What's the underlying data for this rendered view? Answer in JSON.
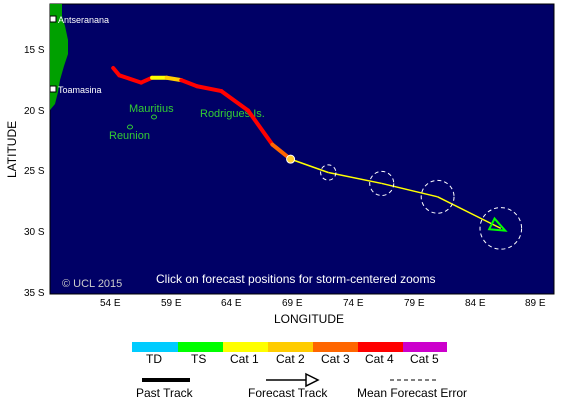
{
  "map": {
    "ocean_color": "#000066",
    "land_color": "#00a000",
    "label_color": "#33cc33",
    "cities": [
      {
        "name": "Antseranana"
      },
      {
        "name": "Toamasina"
      }
    ],
    "islands": [
      {
        "name": "Mauritius"
      },
      {
        "name": "Reunion"
      },
      {
        "name": "Rodrigues Is."
      }
    ],
    "copyright": "© UCL 2015",
    "instruction": "Click on forecast positions for storm-centered zooms"
  },
  "axes": {
    "xlabel": "LONGITUDE",
    "ylabel": "LATITUDE",
    "x_ticks": [
      "54 E",
      "59 E",
      "64 E",
      "69 E",
      "74 E",
      "79 E",
      "84 E",
      "89 E"
    ],
    "y_ticks": [
      "15 S",
      "20 S",
      "25 S",
      "30 S",
      "35 S"
    ]
  },
  "track": {
    "past": [
      {
        "lon": 54.1,
        "lat": 16.4,
        "cat": "TS"
      },
      {
        "lon": 54.6,
        "lat": 17.0,
        "cat": "Cat 4"
      },
      {
        "lon": 56.4,
        "lat": 17.6,
        "cat": "Cat 4"
      },
      {
        "lon": 57.3,
        "lat": 17.2,
        "cat": "Cat 4"
      },
      {
        "lon": 58.5,
        "lat": 17.2,
        "cat": "Cat 1"
      },
      {
        "lon": 59.7,
        "lat": 17.4,
        "cat": "Cat 2"
      },
      {
        "lon": 61.0,
        "lat": 17.9,
        "cat": "Cat 4"
      },
      {
        "lon": 63.0,
        "lat": 18.3,
        "cat": "Cat 4"
      },
      {
        "lon": 65.2,
        "lat": 19.9,
        "cat": "Cat 4"
      },
      {
        "lon": 67.2,
        "lat": 22.7,
        "cat": "Cat 4"
      },
      {
        "lon": 68.7,
        "lat": 23.9,
        "cat": "Cat 3"
      }
    ],
    "current": {
      "lon": 68.7,
      "lat": 23.9,
      "color": "#ffcc33"
    },
    "forecast": [
      {
        "lon": 68.7,
        "lat": 23.9,
        "error_km": 0
      },
      {
        "lon": 71.8,
        "lat": 25.0,
        "error_km": 70
      },
      {
        "lon": 76.2,
        "lat": 25.9,
        "error_km": 110
      },
      {
        "lon": 80.8,
        "lat": 27.0,
        "error_km": 150
      },
      {
        "lon": 86.0,
        "lat": 29.6,
        "error_km": 190
      }
    ],
    "forecast_color": "#ffff00"
  },
  "legend": {
    "categories": [
      {
        "label": "TD",
        "color": "#00ccff"
      },
      {
        "label": "TS",
        "color": "#00ff00"
      },
      {
        "label": "Cat 1",
        "color": "#ffff00"
      },
      {
        "label": "Cat 2",
        "color": "#ffcc00"
      },
      {
        "label": "Cat 3",
        "color": "#ff6600"
      },
      {
        "label": "Cat 4",
        "color": "#ff0000"
      },
      {
        "label": "Cat 5",
        "color": "#cc00cc"
      }
    ],
    "past_track": "Past Track",
    "forecast_track": "Forecast Track",
    "error": "Mean Forecast Error"
  }
}
